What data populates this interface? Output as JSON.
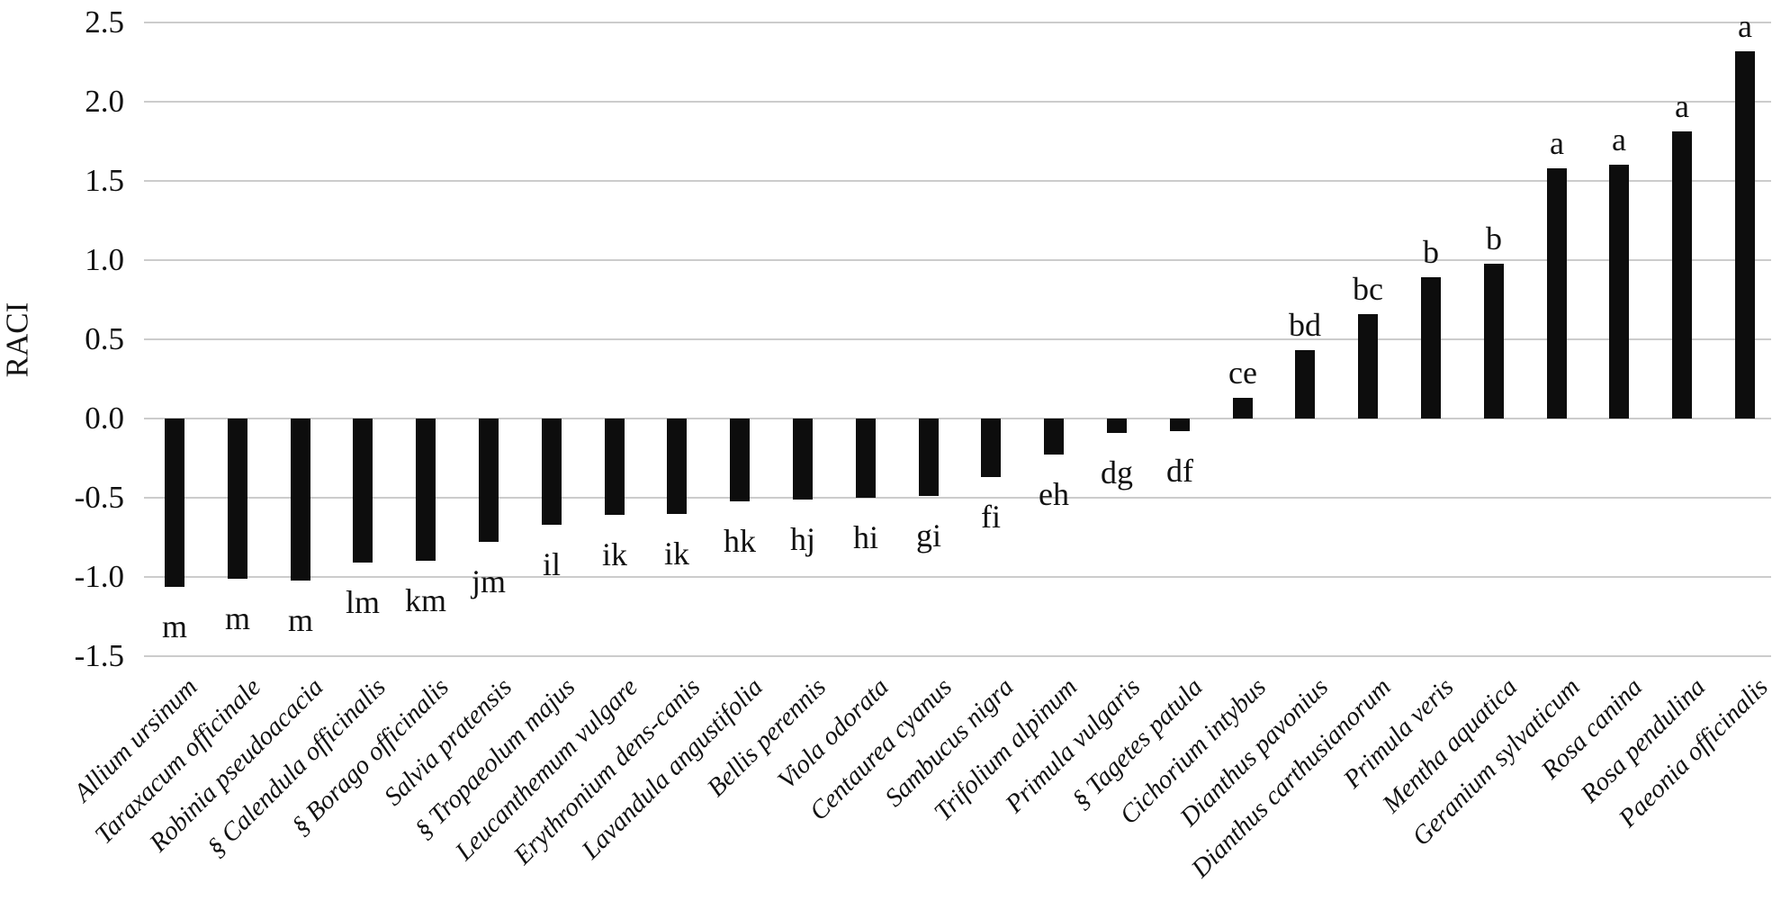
{
  "chart_data": {
    "type": "bar",
    "title": "",
    "ylabel": "RACI",
    "xlabel": "",
    "ylim": [
      -1.5,
      2.5
    ],
    "ytick_step": 0.5,
    "yticks": [
      "2.5",
      "2.0",
      "1.5",
      "1.0",
      "0.5",
      "0.0",
      "-0.5",
      "-1.0",
      "-1.5"
    ],
    "grid": true,
    "legend_position": "none",
    "bar_color": "#0d0d0d",
    "gridline_color": "#cccccc",
    "baseline_value": 0,
    "categories": [
      "Allium ursinum",
      "Taraxacum officinale",
      "Robinia pseudoacacia",
      "§ Calendula officinalis",
      "§ Borago officinalis",
      "Salvia pratensis",
      "§ Tropaeolum majus",
      "Leucanthemum vulgare",
      "Erythronium dens-canis",
      "Lavandula angustifolia",
      "Bellis perennis",
      "Viola odorata",
      "Centaurea cyanus",
      "Sambucus nigra",
      "Trifolium alpinum",
      "Primula vulgaris",
      "§ Tagetes patula",
      "Cichorium intybus",
      "Dianthus pavonius",
      "Dianthus carthusianorum",
      "Primula veris",
      "Mentha aquatica",
      "Geranium sylvaticum",
      "Rosa canina",
      "Rosa pendulina",
      "Paeonia officinalis"
    ],
    "values": [
      -1.06,
      -1.01,
      -1.02,
      -0.91,
      -0.9,
      -0.78,
      -0.67,
      -0.61,
      -0.6,
      -0.52,
      -0.51,
      -0.5,
      -0.49,
      -0.37,
      -0.23,
      -0.09,
      -0.08,
      0.13,
      0.43,
      0.66,
      0.89,
      0.98,
      1.58,
      1.6,
      1.81,
      2.32
    ],
    "significance_letters": [
      "m",
      "m",
      "m",
      "lm",
      "km",
      "jm",
      "il",
      "ik",
      "ik",
      "hk",
      "hj",
      "hi",
      "gi",
      "fi",
      "eh",
      "dg",
      "df",
      "ce",
      "bd",
      "bc",
      "b",
      "b",
      "a",
      "a",
      "a",
      "a"
    ]
  }
}
